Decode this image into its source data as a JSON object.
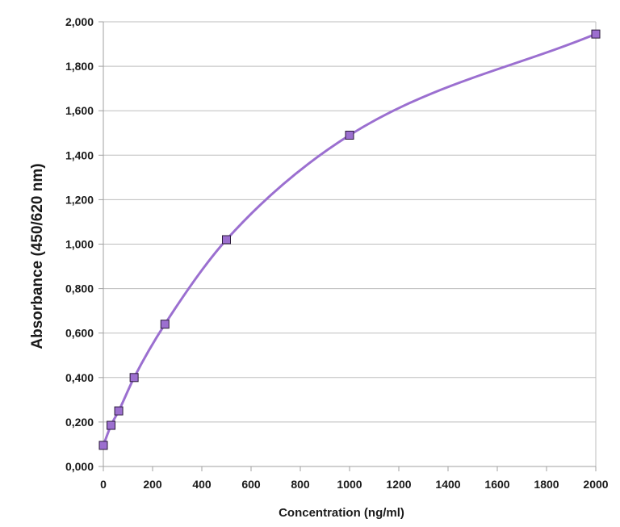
{
  "chart_data": {
    "type": "scatter",
    "title": "",
    "xlabel": "Concentration (ng/ml)",
    "ylabel": "Absorbance (450/620 nm)",
    "xlim": [
      0,
      2000
    ],
    "ylim": [
      0,
      2.0
    ],
    "x_ticks": [
      0,
      200,
      400,
      600,
      800,
      1000,
      1200,
      1400,
      1600,
      1800,
      2000
    ],
    "x_tick_labels": [
      "0",
      "200",
      "400",
      "600",
      "800",
      "1000",
      "1200",
      "1400",
      "1600",
      "1800",
      "2000"
    ],
    "y_ticks": [
      0,
      0.2,
      0.4,
      0.6,
      0.8,
      1.0,
      1.2,
      1.4,
      1.6,
      1.8,
      2.0
    ],
    "y_tick_labels": [
      "0,000",
      "0,200",
      "0,400",
      "0,600",
      "0,800",
      "1,000",
      "1,200",
      "1,400",
      "1,600",
      "1,800",
      "2,000"
    ],
    "grid": "horizontal",
    "legend": "none",
    "series": [
      {
        "x": [
          0,
          31.25,
          62.5,
          125,
          250,
          500,
          1000,
          2000
        ],
        "y": [
          0.095,
          0.185,
          0.25,
          0.4,
          0.64,
          1.02,
          1.49,
          1.945
        ],
        "marker": "square",
        "marker_color": "#9c6fcf",
        "line": "smooth",
        "line_color": "#9b6fd0"
      }
    ]
  }
}
